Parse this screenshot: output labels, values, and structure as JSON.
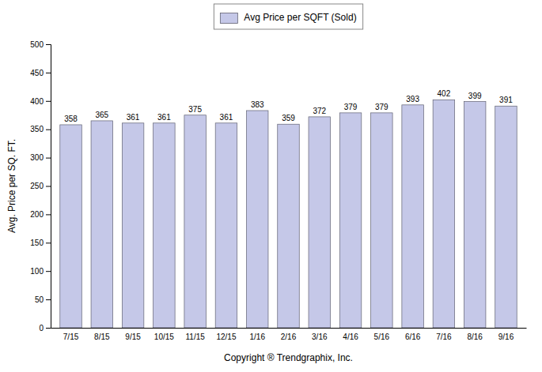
{
  "chart_data": {
    "type": "bar",
    "xlabel": "Copyright ® Trendgraphix, Inc.",
    "ylabel": "Avg. Price per SQ. FT.",
    "categories": [
      "7/15",
      "8/15",
      "9/15",
      "10/15",
      "11/15",
      "12/15",
      "1/16",
      "2/16",
      "3/16",
      "4/16",
      "5/16",
      "6/16",
      "7/16",
      "8/16",
      "9/16"
    ],
    "series": [
      {
        "name": "Avg Price per SQFT (Sold)",
        "color": "#c5c8e8",
        "values": [
          358,
          365,
          361,
          361,
          375,
          361,
          383,
          359,
          372,
          379,
          379,
          393,
          402,
          399,
          391
        ]
      }
    ],
    "ylim": [
      0,
      500
    ],
    "yticks": [
      0,
      50,
      100,
      150,
      200,
      250,
      300,
      350,
      400,
      450,
      500
    ],
    "grid": false,
    "legend": "upper center",
    "data_labels": true
  }
}
